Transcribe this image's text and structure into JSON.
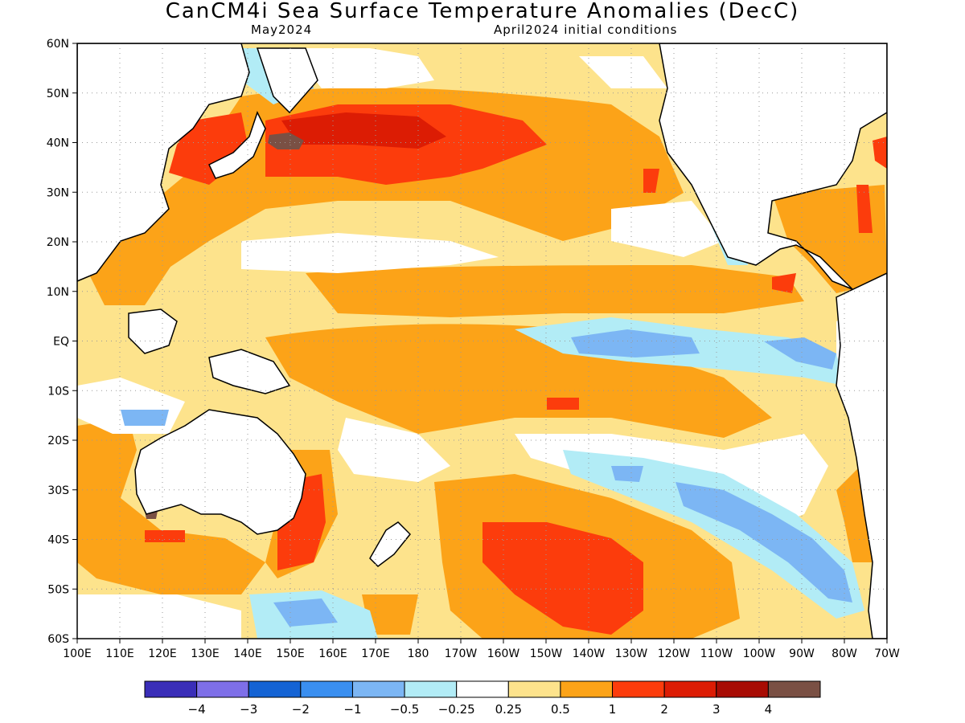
{
  "title": "CanCM4i Sea Surface Temperature Anomalies (DecC)",
  "valid_month": "May2024",
  "init_conditions": "April2024 initial conditions",
  "lat_labels": [
    "60N",
    "50N",
    "40N",
    "30N",
    "20N",
    "10N",
    "EQ",
    "10S",
    "20S",
    "30S",
    "40S",
    "50S",
    "60S"
  ],
  "lon_labels": [
    "100E",
    "110E",
    "120E",
    "130E",
    "140E",
    "150E",
    "160E",
    "170E",
    "180",
    "170W",
    "160W",
    "150W",
    "140W",
    "130W",
    "120W",
    "110W",
    "100W",
    "90W",
    "80W",
    "70W"
  ],
  "colorbar": {
    "colors": [
      "#3a2eb8",
      "#7e6fe8",
      "#1463d4",
      "#3a8ff0",
      "#7cb6f4",
      "#b2ecf6",
      "#ffffff",
      "#fde38c",
      "#fca318",
      "#fc3c0c",
      "#dc1c04",
      "#a80c04",
      "#7a5044"
    ],
    "labels": [
      "−4",
      "−3",
      "−2",
      "−1",
      "−0.5",
      "−0.25",
      "0.25",
      "0.5",
      "1",
      "2",
      "3",
      "4"
    ]
  },
  "map_data": {
    "lon_range": [
      "100E",
      "70W"
    ],
    "lat_range": [
      "60S",
      "60N"
    ],
    "field": "SST anomaly",
    "units": "DecC"
  }
}
